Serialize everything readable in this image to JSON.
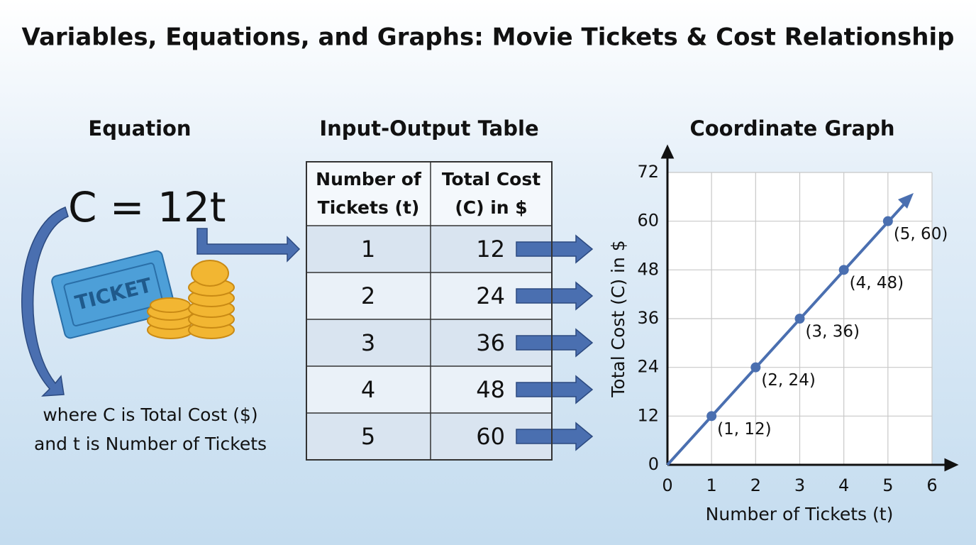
{
  "title": "Variables, Equations, and Graphs: Movie Tickets & Cost Relationship",
  "equation": {
    "heading": "Equation",
    "formula": "C = 12t",
    "ticket_text": "TICKET",
    "note_lines": [
      "where C is Total Cost ($)",
      "and t is Number of Tickets"
    ]
  },
  "table": {
    "heading": "Input-Output Table",
    "columns": [
      [
        "Number of",
        "Tickets (t)"
      ],
      [
        "Total Cost",
        "(C) in $"
      ]
    ],
    "rows": [
      [
        1,
        12
      ],
      [
        2,
        24
      ],
      [
        3,
        36
      ],
      [
        4,
        48
      ],
      [
        5,
        60
      ]
    ]
  },
  "chart_data": {
    "type": "line",
    "title": "Coordinate Graph",
    "x": [
      1,
      2,
      3,
      4,
      5
    ],
    "values": [
      12,
      24,
      36,
      48,
      60
    ],
    "value_labels": [
      "(1, 12)",
      "(2, 24)",
      "(3, 36)",
      "(4, 48)",
      "(5, 60)"
    ],
    "xlim": [
      0,
      6
    ],
    "ylim": [
      0,
      72
    ],
    "xticks": [
      0,
      1,
      2,
      3,
      4,
      5,
      6
    ],
    "yticks": [
      0,
      12,
      24,
      36,
      48,
      60,
      72
    ],
    "xlabel": "Number of Tickets (t)",
    "ylabel": "Total Cost (C) in $",
    "color": "#4a6fb0",
    "grid": true
  }
}
